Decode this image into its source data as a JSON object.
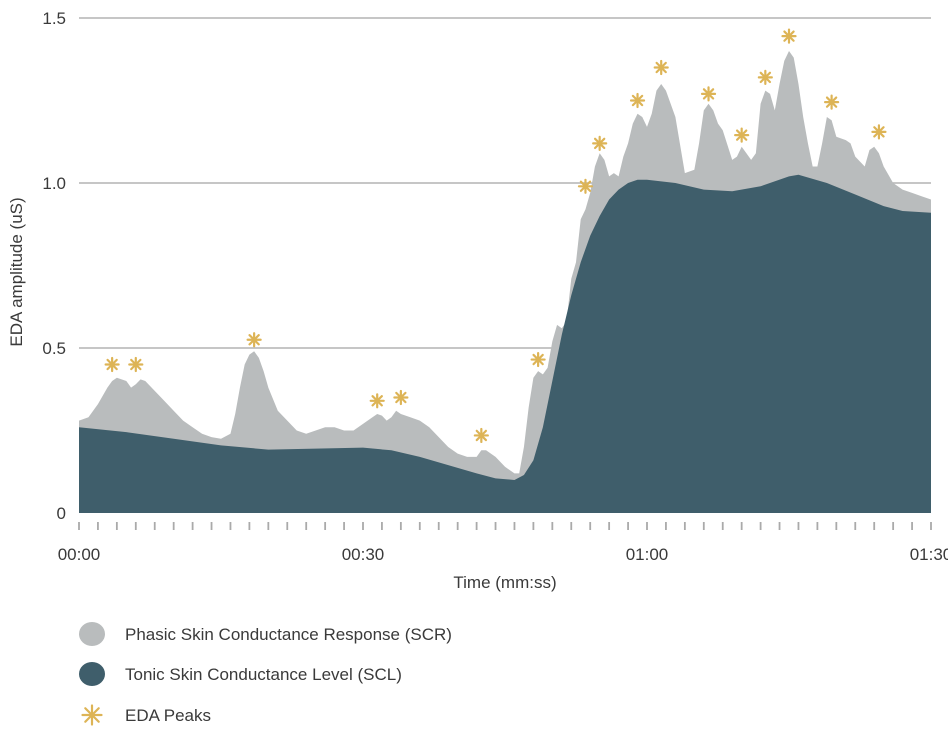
{
  "chart_data": {
    "type": "area",
    "xlabel": "Time (mm:ss)",
    "ylabel": "EDA amplitude (uS)",
    "xlim": [
      0,
      90
    ],
    "ylim": [
      0,
      1.5
    ],
    "x_tick_values": [
      0,
      30,
      60,
      90
    ],
    "x_tick_labels": [
      "00:00",
      "00:30",
      "01:00",
      "01:30"
    ],
    "y_tick_values": [
      0,
      0.5,
      1.0,
      1.5
    ],
    "y_tick_labels": [
      "0",
      "0.5",
      "1.0",
      "1.5"
    ],
    "grid": "horizontal",
    "legend_position": "bottom-left",
    "series": [
      {
        "name": "Phasic Skin Conductance Response (SCR)",
        "kind": "area",
        "color": "#b9bcbd",
        "points": [
          [
            0,
            0.28
          ],
          [
            1,
            0.29
          ],
          [
            2,
            0.33
          ],
          [
            3,
            0.38
          ],
          [
            3.5,
            0.4
          ],
          [
            4,
            0.41
          ],
          [
            5,
            0.4
          ],
          [
            5.5,
            0.38
          ],
          [
            6,
            0.39
          ],
          [
            6.5,
            0.405
          ],
          [
            7,
            0.4
          ],
          [
            8,
            0.37
          ],
          [
            9,
            0.34
          ],
          [
            10,
            0.31
          ],
          [
            11,
            0.28
          ],
          [
            12,
            0.26
          ],
          [
            13,
            0.24
          ],
          [
            14,
            0.23
          ],
          [
            15,
            0.225
          ],
          [
            16,
            0.24
          ],
          [
            16.5,
            0.3
          ],
          [
            17,
            0.38
          ],
          [
            17.5,
            0.45
          ],
          [
            18,
            0.48
          ],
          [
            18.5,
            0.49
          ],
          [
            19,
            0.47
          ],
          [
            19.5,
            0.43
          ],
          [
            20,
            0.38
          ],
          [
            21,
            0.31
          ],
          [
            22,
            0.28
          ],
          [
            23,
            0.25
          ],
          [
            24,
            0.24
          ],
          [
            25,
            0.25
          ],
          [
            26,
            0.26
          ],
          [
            27,
            0.26
          ],
          [
            28,
            0.25
          ],
          [
            29,
            0.25
          ],
          [
            30,
            0.27
          ],
          [
            31,
            0.29
          ],
          [
            31.5,
            0.3
          ],
          [
            32,
            0.295
          ],
          [
            32.5,
            0.28
          ],
          [
            33,
            0.29
          ],
          [
            33.5,
            0.31
          ],
          [
            34,
            0.3
          ],
          [
            35,
            0.29
          ],
          [
            36,
            0.28
          ],
          [
            37,
            0.26
          ],
          [
            38,
            0.23
          ],
          [
            39,
            0.2
          ],
          [
            40,
            0.18
          ],
          [
            41,
            0.17
          ],
          [
            42,
            0.17
          ],
          [
            42.5,
            0.19
          ],
          [
            43,
            0.19
          ],
          [
            44,
            0.17
          ],
          [
            45,
            0.14
          ],
          [
            46,
            0.12
          ],
          [
            46.5,
            0.12
          ],
          [
            47,
            0.2
          ],
          [
            47.5,
            0.32
          ],
          [
            48,
            0.41
          ],
          [
            48.5,
            0.43
          ],
          [
            49,
            0.42
          ],
          [
            49.5,
            0.44
          ],
          [
            50,
            0.52
          ],
          [
            50.5,
            0.57
          ],
          [
            51,
            0.56
          ],
          [
            51.5,
            0.58
          ],
          [
            52,
            0.71
          ],
          [
            52.5,
            0.76
          ],
          [
            53,
            0.89
          ],
          [
            53.5,
            0.92
          ],
          [
            54,
            0.97
          ],
          [
            54.5,
            1.05
          ],
          [
            55,
            1.09
          ],
          [
            55.5,
            1.07
          ],
          [
            56,
            1.02
          ],
          [
            56.5,
            1.03
          ],
          [
            57,
            1.02
          ],
          [
            57.5,
            1.08
          ],
          [
            58,
            1.12
          ],
          [
            58.5,
            1.18
          ],
          [
            59,
            1.21
          ],
          [
            59.5,
            1.2
          ],
          [
            60,
            1.17
          ],
          [
            60.5,
            1.21
          ],
          [
            61,
            1.28
          ],
          [
            61.5,
            1.3
          ],
          [
            62,
            1.28
          ],
          [
            63,
            1.2
          ],
          [
            64,
            1.03
          ],
          [
            65,
            1.04
          ],
          [
            65.5,
            1.12
          ],
          [
            66,
            1.22
          ],
          [
            66.5,
            1.24
          ],
          [
            67,
            1.22
          ],
          [
            67.5,
            1.18
          ],
          [
            68,
            1.16
          ],
          [
            69,
            1.07
          ],
          [
            69.5,
            1.08
          ],
          [
            70,
            1.11
          ],
          [
            70.5,
            1.09
          ],
          [
            71,
            1.07
          ],
          [
            71.5,
            1.09
          ],
          [
            72,
            1.24
          ],
          [
            72.5,
            1.28
          ],
          [
            73,
            1.27
          ],
          [
            73.5,
            1.22
          ],
          [
            74,
            1.3
          ],
          [
            74.5,
            1.37
          ],
          [
            75,
            1.4
          ],
          [
            75.5,
            1.38
          ],
          [
            76,
            1.3
          ],
          [
            76.5,
            1.2
          ],
          [
            77,
            1.12
          ],
          [
            77.5,
            1.05
          ],
          [
            78,
            1.05
          ],
          [
            78.5,
            1.12
          ],
          [
            79,
            1.2
          ],
          [
            79.5,
            1.19
          ],
          [
            80,
            1.14
          ],
          [
            81,
            1.13
          ],
          [
            81.5,
            1.12
          ],
          [
            82,
            1.08
          ],
          [
            83,
            1.05
          ],
          [
            83.5,
            1.1
          ],
          [
            84,
            1.11
          ],
          [
            84.5,
            1.09
          ],
          [
            85,
            1.05
          ],
          [
            86,
            1.0
          ],
          [
            87,
            0.98
          ],
          [
            88,
            0.97
          ],
          [
            89,
            0.96
          ],
          [
            90,
            0.95
          ]
        ]
      },
      {
        "name": "Tonic Skin Conductance Level (SCL)",
        "kind": "area",
        "color": "#3f5e6b",
        "points": [
          [
            0,
            0.26
          ],
          [
            5,
            0.245
          ],
          [
            10,
            0.225
          ],
          [
            15,
            0.205
          ],
          [
            20,
            0.192
          ],
          [
            25,
            0.195
          ],
          [
            30,
            0.198
          ],
          [
            33,
            0.19
          ],
          [
            36,
            0.17
          ],
          [
            39,
            0.145
          ],
          [
            42,
            0.12
          ],
          [
            44,
            0.105
          ],
          [
            46,
            0.1
          ],
          [
            47,
            0.115
          ],
          [
            48,
            0.16
          ],
          [
            49,
            0.26
          ],
          [
            50,
            0.4
          ],
          [
            51,
            0.54
          ],
          [
            52,
            0.66
          ],
          [
            53,
            0.76
          ],
          [
            54,
            0.84
          ],
          [
            55,
            0.9
          ],
          [
            56,
            0.95
          ],
          [
            57,
            0.98
          ],
          [
            58,
            1.0
          ],
          [
            59,
            1.01
          ],
          [
            60,
            1.01
          ],
          [
            63,
            1.0
          ],
          [
            66,
            0.98
          ],
          [
            69,
            0.975
          ],
          [
            72,
            0.99
          ],
          [
            75,
            1.02
          ],
          [
            76,
            1.025
          ],
          [
            79,
            1.0
          ],
          [
            82,
            0.965
          ],
          [
            85,
            0.93
          ],
          [
            87,
            0.915
          ],
          [
            90,
            0.91
          ]
        ]
      },
      {
        "name": "EDA Peaks",
        "kind": "scatter",
        "marker": "asterisk",
        "color": "#ddb456",
        "points": [
          [
            3.5,
            0.45
          ],
          [
            6,
            0.45
          ],
          [
            18.5,
            0.525
          ],
          [
            31.5,
            0.34
          ],
          [
            34,
            0.35
          ],
          [
            42.5,
            0.235
          ],
          [
            48.5,
            0.465
          ],
          [
            53.5,
            0.99
          ],
          [
            55,
            1.12
          ],
          [
            59,
            1.25
          ],
          [
            61.5,
            1.35
          ],
          [
            66.5,
            1.27
          ],
          [
            70,
            1.145
          ],
          [
            72.5,
            1.32
          ],
          [
            75,
            1.445
          ],
          [
            79.5,
            1.245
          ],
          [
            84.5,
            1.155
          ]
        ]
      }
    ]
  }
}
